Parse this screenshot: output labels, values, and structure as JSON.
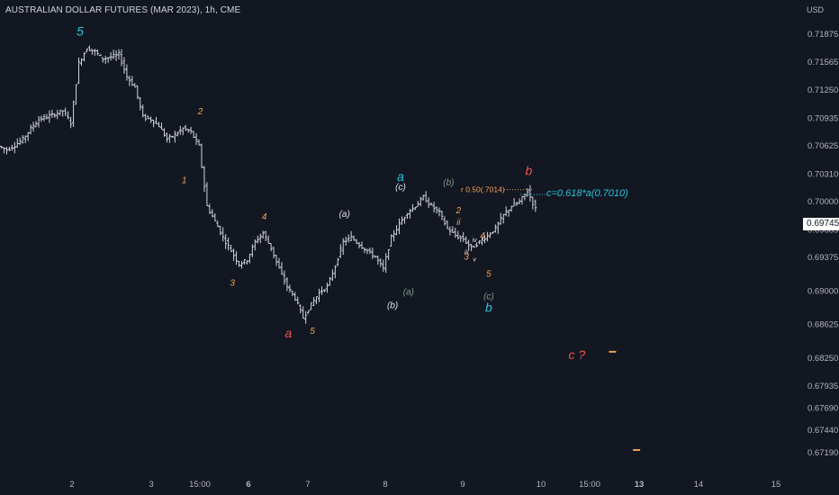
{
  "title": "AUSTRALIAN DOLLAR FUTURES (MAR 2023), 1h, CME",
  "currency": "USD",
  "current_price": "0.69745",
  "colors": {
    "background": "#131722",
    "bar": "#d1d4dc",
    "cyan": "#26c6da",
    "orange": "#f0a054",
    "red": "#ef5350",
    "white": "#e0e3eb",
    "gray_green": "#7f9c86",
    "axis_text": "#b2b5be"
  },
  "chart_data": {
    "type": "ohlc",
    "xlabel": "",
    "ylabel": "",
    "y_ticks": [
      0.71875,
      0.71565,
      0.7125,
      0.70935,
      0.70625,
      0.7031,
      0.7,
      0.69685,
      0.69375,
      0.69,
      0.68625,
      0.6825,
      0.67935,
      0.6769,
      0.6744,
      0.6719
    ],
    "y_tick_labels": [
      "0.71875",
      "0.71565",
      "0.71250",
      "0.70935",
      "0.70625",
      "0.70310",
      "0.70000",
      "0.69685",
      "0.69375",
      "0.69000",
      "0.68625",
      "0.68250",
      "0.67935",
      "0.67690",
      "0.67440",
      "0.67190"
    ],
    "x_ticks": [
      "2",
      "3",
      "15:00",
      "6",
      "7",
      "8",
      "9",
      "10",
      "15:00",
      "13",
      "14",
      "15"
    ],
    "x_tick_bold": [
      false,
      false,
      false,
      true,
      false,
      false,
      false,
      false,
      false,
      true,
      false,
      false
    ],
    "close_path": [
      0.7062,
      0.7058,
      0.7063,
      0.707,
      0.7082,
      0.7092,
      0.7095,
      0.7098,
      0.7102,
      0.7088,
      0.7155,
      0.7172,
      0.7168,
      0.716,
      0.7162,
      0.7165,
      0.714,
      0.7128,
      0.7095,
      0.7092,
      0.7085,
      0.707,
      0.7075,
      0.7082,
      0.7078,
      0.7062,
      0.6995,
      0.6978,
      0.696,
      0.6945,
      0.693,
      0.6935,
      0.6955,
      0.6965,
      0.6948,
      0.6925,
      0.6905,
      0.6892,
      0.687,
      0.6885,
      0.6898,
      0.6905,
      0.6928,
      0.6955,
      0.696,
      0.6952,
      0.6945,
      0.6938,
      0.6925,
      0.696,
      0.6975,
      0.6988,
      0.6995,
      0.7005,
      0.6995,
      0.6988,
      0.697,
      0.6962,
      0.6958,
      0.6948,
      0.6955,
      0.6962,
      0.697,
      0.6985,
      0.6995,
      0.7,
      0.7012,
      0.6992
    ],
    "annotations": [
      {
        "text": "5",
        "x_index": 10,
        "price": 0.7178,
        "color": "cyan",
        "size": "large",
        "offset": "above"
      },
      {
        "text": "1",
        "x_index": 23,
        "price": 0.7035,
        "color": "orange",
        "size": "small",
        "offset": "below"
      },
      {
        "text": "2",
        "x_index": 25,
        "price": 0.709,
        "color": "orange",
        "size": "small",
        "offset": "above"
      },
      {
        "text": "3",
        "x_index": 29,
        "price": 0.692,
        "color": "orange",
        "size": "small",
        "offset": "below"
      },
      {
        "text": "4",
        "x_index": 33,
        "price": 0.6972,
        "color": "orange",
        "size": "small",
        "offset": "above"
      },
      {
        "text": "a",
        "x_index": 36,
        "price": 0.6866,
        "color": "red",
        "size": "large",
        "offset": "below"
      },
      {
        "text": "5",
        "x_index": 39,
        "price": 0.6866,
        "color": "orange",
        "size": "small",
        "offset": "below"
      },
      {
        "text": "(a)",
        "x_index": 43,
        "price": 0.6975,
        "color": "white",
        "size": "small",
        "offset": "above"
      },
      {
        "text": "(b)",
        "x_index": 49,
        "price": 0.6895,
        "color": "white",
        "size": "small",
        "offset": "below"
      },
      {
        "text": "a",
        "x_index": 50,
        "price": 0.7015,
        "color": "cyan",
        "size": "large",
        "offset": "above"
      },
      {
        "text": "(c)",
        "x_index": 50,
        "price": 0.7005,
        "color": "white",
        "size": "small",
        "offset": "above"
      },
      {
        "text": "(a)",
        "x_index": 51,
        "price": 0.691,
        "color": "gray_green",
        "size": "small",
        "offset": "below"
      },
      {
        "text": "(b)",
        "x_index": 56,
        "price": 0.701,
        "color": "gray_green",
        "size": "small",
        "offset": "above"
      },
      {
        "text": "2",
        "x_index": 57,
        "price": 0.699,
        "color": "orange",
        "size": "small",
        "offset": "right"
      },
      {
        "text": "ii",
        "x_index": 57,
        "price": 0.6977,
        "color": "orange",
        "size": "small",
        "offset": "right"
      },
      {
        "text": "iv",
        "x_index": 59,
        "price": 0.6958,
        "color": "white",
        "size": "tiny",
        "offset": "right"
      },
      {
        "text": "4",
        "x_index": 60,
        "price": 0.6962,
        "color": "orange",
        "size": "small",
        "offset": "right"
      },
      {
        "text": "iii",
        "x_index": 58,
        "price": 0.6944,
        "color": "white",
        "size": "tiny",
        "offset": "right"
      },
      {
        "text": "3",
        "x_index": 58,
        "price": 0.6938,
        "color": "orange",
        "size": "small",
        "offset": "right"
      },
      {
        "text": "v",
        "x_index": 59,
        "price": 0.6936,
        "color": "white",
        "size": "tiny",
        "offset": "right"
      },
      {
        "text": "5",
        "x_index": 61,
        "price": 0.693,
        "color": "orange",
        "size": "small",
        "offset": "below"
      },
      {
        "text": "(c)",
        "x_index": 61,
        "price": 0.6905,
        "color": "gray_green",
        "size": "small",
        "offset": "below"
      },
      {
        "text": "b",
        "x_index": 61,
        "price": 0.6895,
        "color": "cyan",
        "size": "large",
        "offset": "below"
      },
      {
        "text": "b",
        "x_index": 66,
        "price": 0.7022,
        "color": "red",
        "size": "large",
        "offset": "above"
      },
      {
        "text": "c ?",
        "x_index": 72,
        "price": 0.6828,
        "color": "red",
        "size": "large",
        "offset": "center"
      }
    ],
    "level_notes": [
      {
        "text": "r 0.50(.7014)",
        "price": 0.70135,
        "color": "orange",
        "x_index": 60
      },
      {
        "text": "c=0.618*a(0.7010)",
        "price": 0.701,
        "color": "cyan",
        "x_index": 68
      }
    ],
    "target_marks": [
      {
        "price": 0.6832,
        "x_index": 76,
        "color": "orange"
      },
      {
        "price": 0.6722,
        "x_index": 79,
        "color": "orange"
      }
    ]
  }
}
